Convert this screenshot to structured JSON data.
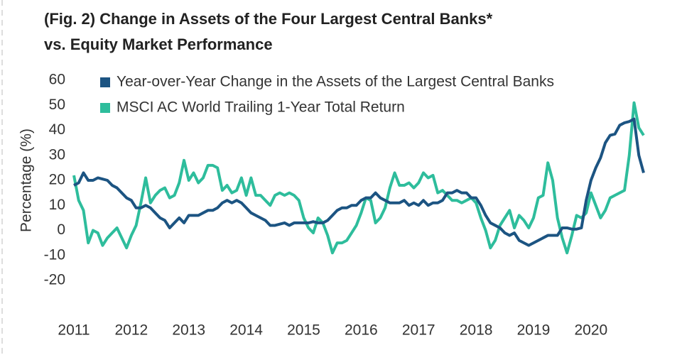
{
  "chart_data": {
    "type": "line",
    "title": "(Fig. 2) Change in Assets of the Four Largest Central Banks*",
    "subtitle": "vs. Equity Market Performance",
    "y_label": "Percentage (%)",
    "categories": [
      "2011",
      null,
      null,
      null,
      null,
      null,
      null,
      null,
      null,
      null,
      null,
      null,
      "2012",
      null,
      null,
      null,
      null,
      null,
      null,
      null,
      null,
      null,
      null,
      null,
      "2013",
      null,
      null,
      null,
      null,
      null,
      null,
      null,
      null,
      null,
      null,
      null,
      "2014",
      null,
      null,
      null,
      null,
      null,
      null,
      null,
      null,
      null,
      null,
      null,
      "2015",
      null,
      null,
      null,
      null,
      null,
      null,
      null,
      null,
      null,
      null,
      null,
      "2016",
      null,
      null,
      null,
      null,
      null,
      null,
      null,
      null,
      null,
      null,
      null,
      "2017",
      null,
      null,
      null,
      null,
      null,
      null,
      null,
      null,
      null,
      null,
      null,
      "2018",
      null,
      null,
      null,
      null,
      null,
      null,
      null,
      null,
      null,
      null,
      null,
      "2019",
      null,
      null,
      null,
      null,
      null,
      null,
      null,
      null,
      null,
      null,
      null,
      "2020",
      null,
      null,
      null,
      null,
      null,
      null,
      null,
      null,
      null,
      null,
      null
    ],
    "series": [
      {
        "name": "Year-over-Year Change in the Assets of the Largest Central Banks",
        "color": "#1c5482",
        "values": [
          18,
          19,
          23,
          20,
          20,
          21,
          20.5,
          20,
          18,
          17,
          15,
          13,
          12,
          9,
          9,
          10,
          9,
          7,
          5,
          4,
          1,
          3,
          5,
          3,
          6,
          6,
          6,
          7,
          8,
          8,
          9,
          11,
          12,
          11,
          12,
          11,
          9,
          7,
          6,
          5,
          4,
          2,
          2,
          2.5,
          3,
          2,
          3,
          3,
          3,
          3,
          3.5,
          3,
          3,
          4,
          6,
          8,
          9,
          9,
          10,
          10,
          12,
          13,
          13,
          15,
          13,
          12,
          11,
          11,
          11,
          12,
          10,
          11,
          10,
          12,
          10,
          11,
          11,
          12,
          15,
          15,
          16,
          15,
          15,
          13,
          13,
          10,
          6,
          3,
          2,
          1,
          -1,
          -2,
          -1,
          -4,
          -5,
          -6,
          -5,
          -4,
          -3,
          -2,
          -2,
          -2,
          1,
          1,
          0.5,
          0.5,
          1,
          12,
          20,
          25,
          29,
          35,
          38,
          38.5,
          42,
          43,
          43.5,
          44.5,
          30,
          23
        ]
      },
      {
        "name": "MSCI AC World Trailing 1-Year Total Return",
        "color": "#2ebd9c",
        "values": [
          22,
          12,
          8,
          -5,
          0,
          -1,
          -6,
          -3,
          -1,
          1,
          -3,
          -7,
          -2,
          2,
          11,
          21,
          11,
          14,
          16,
          17,
          13,
          14,
          19,
          28,
          20,
          23,
          19,
          21,
          26,
          26,
          25,
          16,
          18,
          15,
          16,
          21,
          14,
          21,
          14,
          14,
          12,
          10,
          14,
          15,
          14,
          15,
          14,
          12,
          5,
          1,
          -1,
          5,
          3,
          -2,
          -9,
          -5,
          -5,
          -4,
          -1,
          2,
          7,
          13,
          12,
          3,
          5,
          9,
          17,
          23,
          18,
          18,
          19,
          17,
          19,
          23,
          21,
          22,
          15,
          16,
          14,
          12,
          12,
          11,
          12,
          13,
          11,
          5,
          0,
          -7,
          -4,
          2,
          5,
          8,
          1,
          6,
          4,
          1,
          5,
          13,
          14,
          27,
          20,
          5,
          -3,
          -9,
          -2,
          6,
          5,
          7,
          15,
          10,
          5,
          8,
          13,
          14,
          15,
          16,
          30,
          51,
          41,
          38
        ]
      }
    ],
    "ylim": [
      -20,
      60
    ],
    "yticks": [
      -20,
      -10,
      0,
      10,
      20,
      30,
      40,
      50,
      60
    ],
    "grid": false,
    "legend": "top-left"
  }
}
